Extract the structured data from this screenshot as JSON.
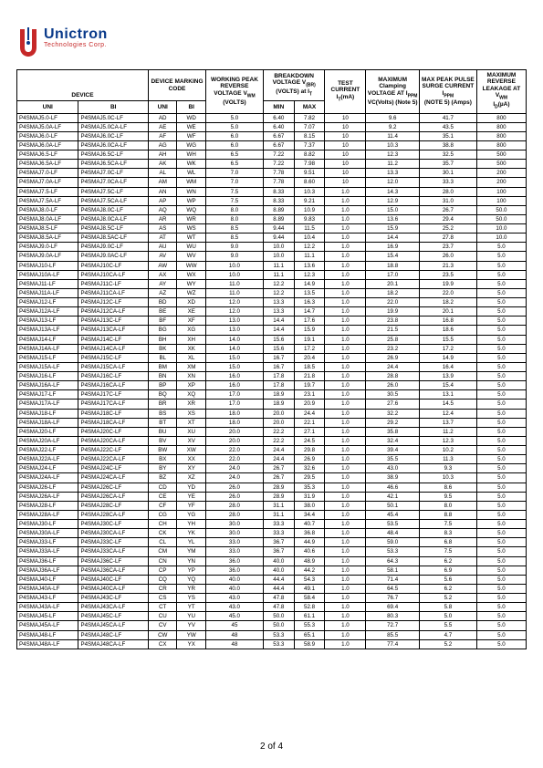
{
  "logo": {
    "name": "Unictron",
    "sub": "Technologies Corp."
  },
  "footer": "2 of 4",
  "headers": {
    "device": "DEVICE",
    "marking": "DEVICE MARKING CODE",
    "wprv": "WORKING PEAK REVERSE VOLTAGE V",
    "wprv_sub": "WM",
    "wprv_tail": "(VOLTS)",
    "bd": "BREAKDOWN VOLTAGE V",
    "bd_sub": "(BR)",
    "bd_tail": "(VOLTS) at I",
    "bd_tail_sub": "T",
    "test": "TEST CURRENT I",
    "test_sub": "T",
    "test_tail": "(mA)",
    "clamp": "MAXIMUM Clamping VOLTAGE AT I",
    "clamp_sub": "PPM",
    "clamp_tail": "VC(Volts) (Note 5)",
    "peak": "MAX PEAK PULSE SURGE CURRENT I",
    "peak_sub": "PPM",
    "peak_tail": "(NOTE 5) (Amps)",
    "leak": "MAXIMUM REVERSE LEAKAGE AT V",
    "leak_sub": "WM",
    "leak_tail": "I",
    "leak_tail_sub": "D",
    "leak_tail_end": "(µA)",
    "uni": "UNI",
    "bi": "BI",
    "min": "MIN",
    "max": "MAX"
  },
  "rows": [
    [
      "P4SMAJ5.0-LF",
      "P4SMAJ5.0C-LF",
      "AD",
      "WD",
      "5.0",
      "6.40",
      "7.82",
      "10",
      "9.6",
      "41.7",
      "800"
    ],
    [
      "P4SMAJ5.0A-LF",
      "P4SMAJ5.0CA-LF",
      "AE",
      "WE",
      "5.0",
      "6.40",
      "7.07",
      "10",
      "9.2",
      "43.5",
      "800"
    ],
    [
      "P4SMAJ6.0-LF",
      "P4SMAJ6.0C-LF",
      "AF",
      "WF",
      "6.0",
      "6.67",
      "8.15",
      "10",
      "11.4",
      "35.1",
      "800"
    ],
    [
      "P4SMAJ6.0A-LF",
      "P4SMAJ6.0CA-LF",
      "AG",
      "WG",
      "6.0",
      "6.67",
      "7.37",
      "10",
      "10.3",
      "38.8",
      "800"
    ],
    [
      "P4SMAJ6.5-LF",
      "P4SMAJ6.5C-LF",
      "AH",
      "WH",
      "6.5",
      "7.22",
      "8.82",
      "10",
      "12.3",
      "32.5",
      "500"
    ],
    [
      "P4SMAJ6.5A-LF",
      "P4SMAJ6.5CA-LF",
      "AK",
      "WK",
      "6.5",
      "7.22",
      "7.98",
      "10",
      "11.2",
      "35.7",
      "500"
    ],
    [
      "P4SMAJ7.0-LF",
      "P4SMAJ7.0C-LF",
      "AL",
      "WL",
      "7.0",
      "7.78",
      "9.51",
      "10",
      "13.3",
      "30.1",
      "200"
    ],
    [
      "P4SMAJ7.0A-LF",
      "P4SMAJ7.0CA-LF",
      "AM",
      "WM",
      "7.0",
      "7.78",
      "8.60",
      "10",
      "12.0",
      "33.3",
      "200"
    ],
    [
      "P4SMAJ7.5-LF",
      "P4SMAJ7.5C-LF",
      "AN",
      "WN",
      "7.5",
      "8.33",
      "10.3",
      "1.0",
      "14.3",
      "28.0",
      "100"
    ],
    [
      "P4SMAJ7.5A-LF",
      "P4SMAJ7.5CA-LF",
      "AP",
      "WP",
      "7.5",
      "8.33",
      "9.21",
      "1.0",
      "12.9",
      "31.0",
      "100"
    ],
    [
      "P4SMAJ8.0-LF",
      "P4SMAJ8.0C-LF",
      "AQ",
      "WQ",
      "8.0",
      "8.89",
      "10.9",
      "1.0",
      "15.0",
      "26.7",
      "50.0"
    ],
    [
      "P4SMAJ8.0A-LF",
      "P4SMAJ8.0CA-LF",
      "AR",
      "WR",
      "8.0",
      "8.89",
      "9.83",
      "1.0",
      "13.6",
      "29.4",
      "50.0"
    ],
    [
      "P4SMAJ8.5-LF",
      "P4SMAJ8.5C-LF",
      "AS",
      "WS",
      "8.5",
      "9.44",
      "11.5",
      "1.0",
      "15.9",
      "25.2",
      "10.0"
    ],
    [
      "P4SMAJ8.5A-LF",
      "P4SMAJ8.5AC-LF",
      "AT",
      "WT",
      "8.5",
      "9.44",
      "10.4",
      "1.0",
      "14.4",
      "27.8",
      "10.0"
    ],
    [
      "P4SMAJ9.0-LF",
      "P4SMAJ9.0C-LF",
      "AU",
      "WU",
      "9.0",
      "10.0",
      "12.2",
      "1.0",
      "16.9",
      "23.7",
      "5.0"
    ],
    [
      "P4SMAJ9.0A-LF",
      "P4SMAJ9.0AC-LF",
      "AV",
      "WV",
      "9.0",
      "10.0",
      "11.1",
      "1.0",
      "15.4",
      "26.0",
      "5.0"
    ],
    [
      "P4SMAJ10-LF",
      "P4SMAJ10C-LF",
      "AW",
      "WW",
      "10.0",
      "11.1",
      "13.6",
      "1.0",
      "18.8",
      "21.3",
      "5.0"
    ],
    [
      "P4SMAJ10A-LF",
      "P4SMAJ10CA-LF",
      "AX",
      "WX",
      "10.0",
      "11.1",
      "12.3",
      "1.0",
      "17.0",
      "23.5",
      "5.0"
    ],
    [
      "P4SMAJ11-LF",
      "P4SMAJ11C-LF",
      "AY",
      "WY",
      "11.0",
      "12.2",
      "14.9",
      "1.0",
      "20.1",
      "19.9",
      "5.0"
    ],
    [
      "P4SMAJ11A-LF",
      "P4SMAJ11CA-LF",
      "AZ",
      "WZ",
      "11.0",
      "12.2",
      "13.5",
      "1.0",
      "18.2",
      "22.0",
      "5.0"
    ],
    [
      "P4SMAJ12-LF",
      "P4SMAJ12C-LF",
      "BD",
      "XD",
      "12.0",
      "13.3",
      "16.3",
      "1.0",
      "22.0",
      "18.2",
      "5.0"
    ],
    [
      "P4SMAJ12A-LF",
      "P4SMAJ12CA-LF",
      "BE",
      "XE",
      "12.0",
      "13.3",
      "14.7",
      "1.0",
      "19.9",
      "20.1",
      "5.0"
    ],
    [
      "P4SMAJ13-LF",
      "P4SMAJ13C-LF",
      "BF",
      "XF",
      "13.0",
      "14.4",
      "17.6",
      "1.0",
      "23.8",
      "16.8",
      "5.0"
    ],
    [
      "P4SMAJ13A-LF",
      "P4SMAJ13CA-LF",
      "BG",
      "XG",
      "13.0",
      "14.4",
      "15.9",
      "1.0",
      "21.5",
      "18.6",
      "5.0"
    ],
    [
      "P4SMAJ14-LF",
      "P4SMAJ14C-LF",
      "BH",
      "XH",
      "14.0",
      "15.6",
      "19.1",
      "1.0",
      "25.8",
      "15.5",
      "5.0"
    ],
    [
      "P4SMAJ14A-LF",
      "P4SMAJ14CA-LF",
      "BK",
      "XK",
      "14.0",
      "15.6",
      "17.2",
      "1.0",
      "23.2",
      "17.2",
      "5.0"
    ],
    [
      "P4SMAJ15-LF",
      "P4SMAJ15C-LF",
      "BL",
      "XL",
      "15.0",
      "16.7",
      "20.4",
      "1.0",
      "26.9",
      "14.9",
      "5.0"
    ],
    [
      "P4SMAJ15A-LF",
      "P4SMAJ15CA-LF",
      "BM",
      "XM",
      "15.0",
      "16.7",
      "18.5",
      "1.0",
      "24.4",
      "16.4",
      "5.0"
    ],
    [
      "P4SMAJ16-LF",
      "P4SMAJ16C-LF",
      "BN",
      "XN",
      "16.0",
      "17.8",
      "21.8",
      "1.0",
      "28.8",
      "13.9",
      "5.0"
    ],
    [
      "P4SMAJ16A-LF",
      "P4SMAJ16CA-LF",
      "BP",
      "XP",
      "16.0",
      "17.8",
      "19.7",
      "1.0",
      "26.0",
      "15.4",
      "5.0"
    ],
    [
      "P4SMAJ17-LF",
      "P4SMAJ17C-LF",
      "BQ",
      "XQ",
      "17.0",
      "18.9",
      "23.1",
      "1.0",
      "30.5",
      "13.1",
      "5.0"
    ],
    [
      "P4SMAJ17A-LF",
      "P4SMAJ17CA-LF",
      "BR",
      "XR",
      "17.0",
      "18.9",
      "20.9",
      "1.0",
      "27.6",
      "14.5",
      "5.0"
    ],
    [
      "P4SMAJ18-LF",
      "P4SMAJ18C-LF",
      "BS",
      "XS",
      "18.0",
      "20.0",
      "24.4",
      "1.0",
      "32.2",
      "12.4",
      "5.0"
    ],
    [
      "P4SMAJ18A-LF",
      "P4SMAJ18CA-LF",
      "BT",
      "XT",
      "18.0",
      "20.0",
      "22.1",
      "1.0",
      "29.2",
      "13.7",
      "5.0"
    ],
    [
      "P4SMAJ20-LF",
      "P4SMAJ20C-LF",
      "BU",
      "XU",
      "20.0",
      "22.2",
      "27.1",
      "1.0",
      "35.8",
      "11.2",
      "5.0"
    ],
    [
      "P4SMAJ20A-LF",
      "P4SMAJ20CA-LF",
      "BV",
      "XV",
      "20.0",
      "22.2",
      "24.5",
      "1.0",
      "32.4",
      "12.3",
      "5.0"
    ],
    [
      "P4SMAJ22-LF",
      "P4SMAJ22C-LF",
      "BW",
      "XW",
      "22.0",
      "24.4",
      "29.8",
      "1.0",
      "39.4",
      "10.2",
      "5.0"
    ],
    [
      "P4SMAJ22A-LF",
      "P4SMAJ22CA-LF",
      "BX",
      "XX",
      "22.0",
      "24.4",
      "26.9",
      "1.0",
      "35.5",
      "11.3",
      "5.0"
    ],
    [
      "P4SMAJ24-LF",
      "P4SMAJ24C-LF",
      "BY",
      "XY",
      "24.0",
      "26.7",
      "32.6",
      "1.0",
      "43.0",
      "9.3",
      "5.0"
    ],
    [
      "P4SMAJ24A-LF",
      "P4SMAJ24CA-LF",
      "BZ",
      "XZ",
      "24.0",
      "26.7",
      "29.5",
      "1.0",
      "38.9",
      "10.3",
      "5.0"
    ],
    [
      "P4SMAJ26-LF",
      "P4SMAJ26C-LF",
      "CD",
      "YD",
      "26.0",
      "28.9",
      "35.3",
      "1.0",
      "46.6",
      "8.6",
      "5.0"
    ],
    [
      "P4SMAJ26A-LF",
      "P4SMAJ26CA-LF",
      "CE",
      "YE",
      "26.0",
      "28.9",
      "31.9",
      "1.0",
      "42.1",
      "9.5",
      "5.0"
    ],
    [
      "P4SMAJ28-LF",
      "P4SMAJ28C-LF",
      "CF",
      "YF",
      "28.0",
      "31.1",
      "38.0",
      "1.0",
      "50.1",
      "8.0",
      "5.0"
    ],
    [
      "P4SMAJ28A-LF",
      "P4SMAJ28CA-LF",
      "CG",
      "YG",
      "28.0",
      "31.1",
      "34.4",
      "1.0",
      "45.4",
      "8.8",
      "5.0"
    ],
    [
      "P4SMAJ30-LF",
      "P4SMAJ30C-LF",
      "CH",
      "YH",
      "30.0",
      "33.3",
      "40.7",
      "1.0",
      "53.5",
      "7.5",
      "5.0"
    ],
    [
      "P4SMAJ30A-LF",
      "P4SMAJ30CA-LF",
      "CK",
      "YK",
      "30.0",
      "33.3",
      "36.8",
      "1.0",
      "48.4",
      "8.3",
      "5.0"
    ],
    [
      "P4SMAJ33-LF",
      "P4SMAJ33C-LF",
      "CL",
      "YL",
      "33.0",
      "36.7",
      "44.9",
      "1.0",
      "59.0",
      "6.8",
      "5.0"
    ],
    [
      "P4SMAJ33A-LF",
      "P4SMAJ33CA-LF",
      "CM",
      "YM",
      "33.0",
      "36.7",
      "40.6",
      "1.0",
      "53.3",
      "7.5",
      "5.0"
    ],
    [
      "P4SMAJ36-LF",
      "P4SMAJ36C-LF",
      "CN",
      "YN",
      "36.0",
      "40.0",
      "48.9",
      "1.0",
      "64.3",
      "6.2",
      "5.0"
    ],
    [
      "P4SMAJ36A-LF",
      "P4SMAJ36CA-LF",
      "CP",
      "YP",
      "36.0",
      "40.0",
      "44.2",
      "1.0",
      "58.1",
      "6.9",
      "5.0"
    ],
    [
      "P4SMAJ40-LF",
      "P4SMAJ40C-LF",
      "CQ",
      "YQ",
      "40.0",
      "44.4",
      "54.3",
      "1.0",
      "71.4",
      "5.6",
      "5.0"
    ],
    [
      "P4SMAJ40A-LF",
      "P4SMAJ40CA-LF",
      "CR",
      "YR",
      "40.0",
      "44.4",
      "49.1",
      "1.0",
      "64.5",
      "6.2",
      "5.0"
    ],
    [
      "P4SMAJ43-LF",
      "P4SMAJ43C-LF",
      "CS",
      "YS",
      "43.0",
      "47.8",
      "58.4",
      "1.0",
      "76.7",
      "5.2",
      "5.0"
    ],
    [
      "P4SMAJ43A-LF",
      "P4SMAJ43CA-LF",
      "CT",
      "YT",
      "43.0",
      "47.8",
      "52.8",
      "1.0",
      "69.4",
      "5.8",
      "5.0"
    ],
    [
      "P4SMAJ45-LF",
      "P4SMAJ45C-LF",
      "CU",
      "YU",
      "45.0",
      "50.0",
      "61.1",
      "1.0",
      "80.3",
      "5.0",
      "5.0"
    ],
    [
      "P4SMAJ45A-LF",
      "P4SMAJ45CA-LF",
      "CV",
      "YV",
      "45",
      "50.0",
      "55.3",
      "1.0",
      "72.7",
      "5.5",
      "5.0"
    ],
    [
      "P4SMAJ48-LF",
      "P4SMAJ48C-LF",
      "CW",
      "YW",
      "48",
      "53.3",
      "65.1",
      "1.0",
      "85.5",
      "4.7",
      "5.0"
    ],
    [
      "P4SMAJ48A-LF",
      "P4SMAJ48CA-LF",
      "CX",
      "YX",
      "48",
      "53.3",
      "58.9",
      "1.0",
      "77.4",
      "5.2",
      "5.0"
    ]
  ]
}
